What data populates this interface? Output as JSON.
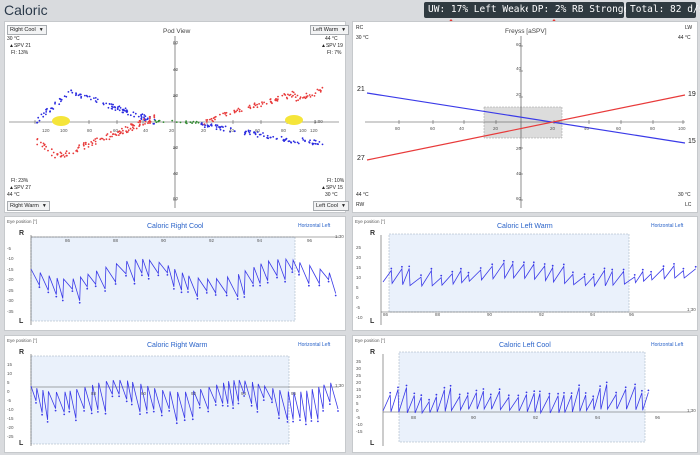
{
  "window": {
    "title": "Caloric"
  },
  "status": {
    "uw": "UW: 17% Left Weaker",
    "dp": "DP: 2% RB Stronger",
    "total": "Total: 82  d/s",
    "check": "✓"
  },
  "pod_view": {
    "title": "Pod View",
    "dropdowns": {
      "top_left": "Right Cool",
      "top_right": "Left Warm",
      "bottom_left": "Right Warm",
      "bottom_right": "Left Cool"
    },
    "corners": {
      "tl": [
        "30 °C",
        "▲SPV 21",
        "FI: 13%"
      ],
      "tr": [
        "44 °C",
        "▲SPV 19",
        "FI: 7%"
      ],
      "bl": [
        "FI: 23%",
        "▲SPV 27",
        "44 °C"
      ],
      "br": [
        "FI: 10%",
        "▲SPV 15",
        "30 °C"
      ]
    },
    "x_ticks_left": [
      "120",
      "100",
      "80",
      "60",
      "40",
      "20"
    ],
    "x_ticks_right": [
      "20",
      "40",
      "60",
      "80",
      "100",
      "120"
    ],
    "y_ticks_up": [
      "20",
      "40",
      "60"
    ],
    "y_ticks_down": [
      "20",
      "40",
      "60"
    ],
    "y_max_label": "60",
    "y_min_label": "60",
    "axis_end": "1:00"
  },
  "freyss": {
    "title": "Freyss [aSPV]",
    "corners": {
      "rc": "RC",
      "lw": "LW",
      "t_tl": "30 °C",
      "t_tr": "44 °C",
      "t_bl": "44 °C",
      "t_br": "30 °C",
      "rw": "RW",
      "lc": "LC"
    },
    "values": {
      "left_top": "21",
      "left_bottom": "27",
      "right_top": "19",
      "right_bottom": "15"
    },
    "x_ticks_left": [
      "80",
      "60",
      "40",
      "20"
    ],
    "x_ticks_right": [
      "20",
      "40",
      "60",
      "80",
      "100"
    ],
    "y_ticks_up": [
      "20",
      "40",
      "60"
    ],
    "y_ticks_down": [
      "20",
      "40",
      "60"
    ],
    "colors": {
      "red": "#e83a3a",
      "blue": "#3a3ae8"
    }
  },
  "traces": [
    {
      "title": "Caloric Right Cool",
      "eye_label": "Eye position [°]",
      "link": "Horizontal Left",
      "r": "R",
      "l": "L",
      "y_ticks": [
        "-5",
        "-10",
        "-15",
        "-20",
        "-25",
        "-30",
        "-35"
      ],
      "x_ticks": [
        "86",
        "88",
        "90",
        "92",
        "94",
        "96"
      ],
      "end": "1:30"
    },
    {
      "title": "Caloric Left Warm",
      "eye_label": "Eye position [°]",
      "link": "Horizontal Left",
      "r": "R",
      "l": "L",
      "y_ticks": [
        "25",
        "20",
        "15",
        "10",
        "5",
        "0",
        "-5",
        "-10"
      ],
      "x_ticks": [
        "86",
        "88",
        "90",
        "92",
        "94",
        "96"
      ],
      "end": "1:30"
    },
    {
      "title": "Caloric Right Warm",
      "eye_label": "Eye position [°]",
      "link": "Horizontal Left",
      "r": "R",
      "l": "L",
      "y_ticks": [
        "15",
        "10",
        "5",
        "0",
        "-5",
        "-10",
        "-15",
        "-20",
        "-25"
      ],
      "x_ticks": [
        "88",
        "90",
        "92",
        "94",
        "96"
      ],
      "end": "1:30"
    },
    {
      "title": "Caloric Left Cool",
      "eye_label": "Eye position [°]",
      "link": "Horizontal Left",
      "r": "R",
      "l": "L",
      "y_ticks": [
        "35",
        "30",
        "25",
        "20",
        "15",
        "10",
        "5",
        "0",
        "-5",
        "-10",
        "-15"
      ],
      "x_ticks": [
        "88",
        "90",
        "92",
        "94",
        "96"
      ],
      "end": "1:30"
    }
  ],
  "colors": {
    "trace": "#3a3ae8",
    "shade": "#eaf1fb",
    "red": "#e83a3a",
    "blue": "#2b2be0",
    "green": "#2e8b2e",
    "yellow": "#f5e53a",
    "arrow": "#e8332f"
  }
}
